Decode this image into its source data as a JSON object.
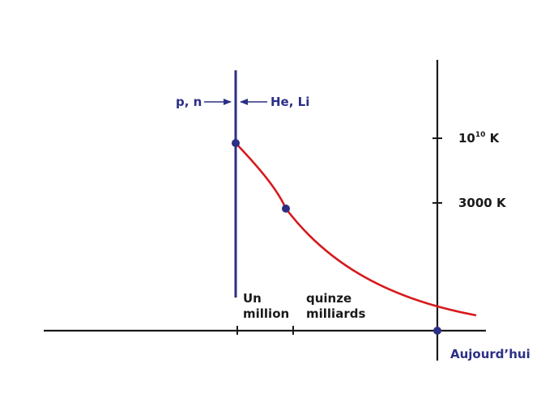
{
  "colors": {
    "axis": "#1a1a1a",
    "blue": "#2b2f86",
    "curve": "#d7191c",
    "point": "#2b2f86"
  },
  "labels": {
    "left_particles": "p, n",
    "right_particles": "He, Li",
    "temp_high_base": "10",
    "temp_high_exp": "10",
    "temp_high_unit": " K",
    "temp_low": "3000 K",
    "tick_1_line1": "Un",
    "tick_1_line2": "million",
    "tick_2_line1": "quinze",
    "tick_2_line2": "milliards",
    "now": "Aujourd’hui"
  },
  "icons": {
    "left_arrow": "arrow-right-icon",
    "right_arrow": "arrow-left-icon"
  }
}
